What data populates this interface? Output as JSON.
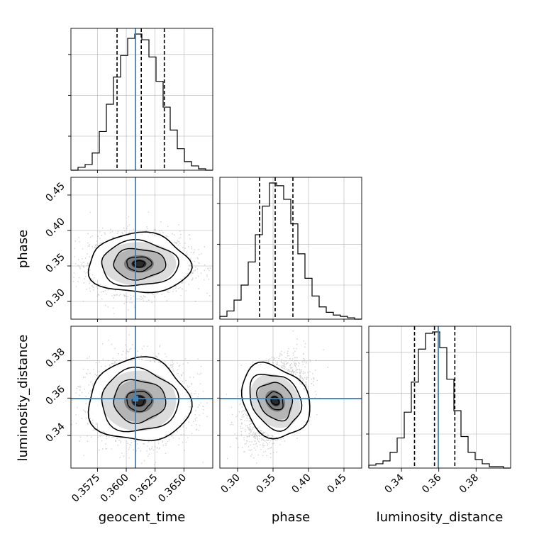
{
  "chart_data": {
    "type": "corner",
    "parameters": [
      "geocent_time",
      "phase",
      "luminosity_distance"
    ],
    "axis_labels": {
      "geocent_time": "geocent_time",
      "phase": "phase",
      "luminosity_distance": "luminosity_distance"
    },
    "ranges": {
      "geocent_time": [
        0.3552,
        0.3675
      ],
      "phase": [
        0.275,
        0.475
      ],
      "luminosity_distance": [
        0.3225,
        0.3985
      ]
    },
    "ticks": {
      "geocent_time": [
        "0.3575",
        "0.3600",
        "0.3625",
        "0.3650"
      ],
      "phase": [
        "0.30",
        "0.35",
        "0.40",
        "0.45"
      ],
      "luminosity_distance": [
        "0.34",
        "0.36",
        "0.38"
      ]
    },
    "truths": {
      "geocent_time": 0.3608,
      "phase": null,
      "luminosity_distance": 0.3597
    },
    "quantiles": {
      "geocent_time": [
        0.3592,
        0.3613,
        0.3633
      ],
      "phase": [
        0.331,
        0.353,
        0.378
      ],
      "luminosity_distance": [
        0.347,
        0.3577,
        0.3686
      ]
    },
    "histograms": {
      "geocent_time": [
        0,
        2,
        4,
        12,
        27,
        46,
        65,
        80,
        92,
        95,
        91,
        79,
        62,
        44,
        28,
        15,
        6,
        3,
        1,
        0
      ],
      "phase": [
        2,
        6,
        14,
        25,
        42,
        62,
        83,
        100,
        98,
        88,
        70,
        48,
        30,
        17,
        9,
        5,
        3,
        2,
        1,
        0
      ],
      "luminosity_distance": [
        2,
        3,
        5,
        11,
        21,
        39,
        60,
        83,
        94,
        95,
        84,
        62,
        40,
        22,
        11,
        6,
        3,
        1,
        1,
        0
      ]
    },
    "centers_2d": [
      {
        "x": "geocent_time",
        "y": "phase",
        "mean": [
          0.3611,
          0.353
        ],
        "sd": [
          0.00215,
          0.0205
        ],
        "corr": 0.0
      },
      {
        "x": "geocent_time",
        "y": "luminosity_distance",
        "mean": [
          0.3611,
          0.3585
        ],
        "sd": [
          0.00215,
          0.0108
        ],
        "corr": 0.0
      },
      {
        "x": "phase",
        "y": "luminosity_distance",
        "mean": [
          0.353,
          0.3585
        ],
        "sd": [
          0.0205,
          0.0108
        ],
        "corr": 0.45
      }
    ],
    "colors": {
      "truth": "#4682b4",
      "line": "#000000",
      "grid": "#b0b0b0"
    },
    "grid": true
  }
}
